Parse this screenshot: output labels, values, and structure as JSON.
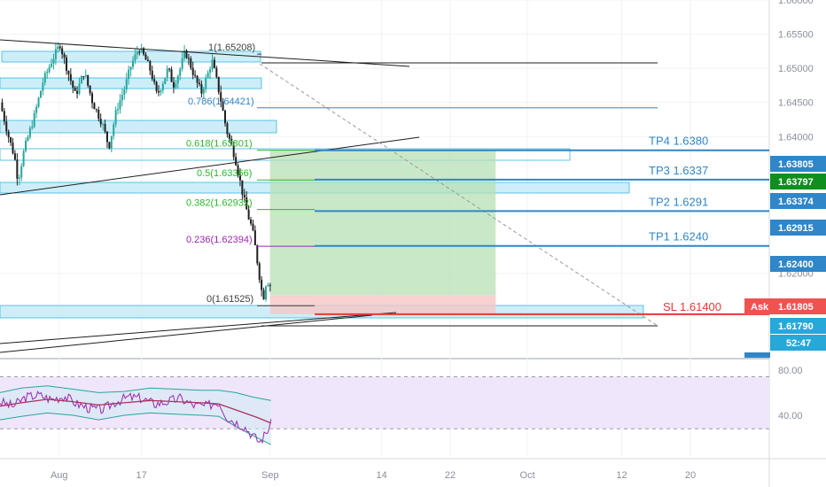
{
  "chart_data": {
    "type": "candlestick",
    "price_axis": {
      "ticks": [
        "1.66000",
        "1.65500",
        "1.65000",
        "1.64500",
        "1.64000",
        "1.62000"
      ],
      "range": [
        1.6075,
        1.66
      ]
    },
    "time_axis": {
      "ticks": [
        {
          "label": "Aug",
          "day": 7.4
        },
        {
          "label": "17",
          "day": 17
        },
        {
          "label": "Sep",
          "day": 32
        },
        {
          "label": "14",
          "day": 45
        },
        {
          "label": "22",
          "day": 53
        },
        {
          "label": "Oct",
          "day": 62
        },
        {
          "label": "12",
          "day": 73
        },
        {
          "label": "20",
          "day": 81
        }
      ],
      "range": [
        0.5,
        90.2
      ]
    },
    "price_path": [
      [
        0.5,
        1.645
      ],
      [
        1.5,
        1.64
      ],
      [
        2.2,
        1.637
      ],
      [
        2.6,
        1.6335
      ],
      [
        3.3,
        1.638
      ],
      [
        4.5,
        1.643
      ],
      [
        5.5,
        1.648
      ],
      [
        6.5,
        1.651
      ],
      [
        7.5,
        1.6535
      ],
      [
        8.3,
        1.65
      ],
      [
        9.3,
        1.646
      ],
      [
        10.3,
        1.6495
      ],
      [
        11.3,
        1.645
      ],
      [
        12.4,
        1.642
      ],
      [
        13.2,
        1.6385
      ],
      [
        14.1,
        1.644
      ],
      [
        15,
        1.647
      ],
      [
        15.8,
        1.6505
      ],
      [
        16.7,
        1.653
      ],
      [
        17.4,
        1.6515
      ],
      [
        18.1,
        1.6495
      ],
      [
        18.8,
        1.646
      ],
      [
        19.5,
        1.648
      ],
      [
        20.1,
        1.65
      ],
      [
        20.7,
        1.6475
      ],
      [
        21.4,
        1.6495
      ],
      [
        22.1,
        1.6525
      ],
      [
        22.7,
        1.6505
      ],
      [
        23.4,
        1.648
      ],
      [
        24,
        1.6465
      ],
      [
        24.7,
        1.649
      ],
      [
        25.2,
        1.6512
      ],
      [
        25.8,
        1.648
      ],
      [
        26.3,
        1.645
      ],
      [
        26.9,
        1.641
      ],
      [
        27.4,
        1.639
      ],
      [
        27.9,
        1.637
      ],
      [
        28.4,
        1.634
      ],
      [
        28.9,
        1.631
      ],
      [
        29.4,
        1.6285
      ],
      [
        29.9,
        1.6265
      ],
      [
        30.3,
        1.6235
      ],
      [
        30.7,
        1.62
      ],
      [
        31.0,
        1.6175
      ],
      [
        31.3,
        1.6165
      ],
      [
        31.6,
        1.6195
      ],
      [
        31.9,
        1.618
      ],
      [
        32.1,
        1.6185
      ]
    ],
    "fibonacci": [
      {
        "level": "1",
        "value": "1.65208",
        "label": "1(1.65208)",
        "price": 1.65208,
        "color": "#3f3f3f"
      },
      {
        "level": "0.786",
        "value": "1.64421",
        "label": "0.786(1.64421)",
        "price": 1.64421,
        "color": "#2f86c8"
      },
      {
        "level": "0.618",
        "value": "1.63801",
        "label": "0.618(1.63801)",
        "price": 1.63801,
        "color": "#2bb82b"
      },
      {
        "level": "0.5",
        "value": "1.63366",
        "label": "0.5(1.63366)",
        "price": 1.63366,
        "color": "#2bb82b"
      },
      {
        "level": "0.382",
        "value": "1.62932",
        "label": "0.382(1.62932)",
        "price": 1.62932,
        "color": "#2bb82b"
      },
      {
        "level": "0.236",
        "value": "1.62394",
        "label": "0.236(1.62394)",
        "price": 1.62394,
        "color": "#9c27b0"
      },
      {
        "level": "0",
        "value": "1.61525",
        "label": "0(1.61525)",
        "price": 1.61525,
        "color": "#3f3f3f"
      }
    ],
    "targets": [
      {
        "label": "TP4 1.6380",
        "price": 1.638,
        "color": "#2f86c8"
      },
      {
        "label": "TP3 1.6337",
        "price": 1.6337,
        "color": "#2f86c8"
      },
      {
        "label": "TP2 1.6291",
        "price": 1.6291,
        "color": "#2f86c8"
      },
      {
        "label": "TP1 1.6240",
        "price": 1.624,
        "color": "#2f86c8"
      },
      {
        "label": "SL 1.61400",
        "price": 1.614,
        "color": "#e53935"
      }
    ],
    "price_tags": [
      {
        "text": "1.63805",
        "price": 1.63805,
        "color": "#2f86c8"
      },
      {
        "text": "1.63797",
        "price": 1.63797,
        "color": "#0f8f1e"
      },
      {
        "text": "1.63374",
        "price": 1.63374,
        "color": "#2f86c8"
      },
      {
        "text": "1.62915",
        "price": 1.62915,
        "color": "#2f86c8"
      },
      {
        "text": "1.62400",
        "price": 1.624,
        "color": "#2f86c8"
      },
      {
        "text": "1.61805",
        "price": 1.61805,
        "color": "#ef5350",
        "prefix": "Ask"
      },
      {
        "text": "1.61790",
        "price": 1.6179,
        "color": "#26a8d8"
      }
    ],
    "countdown": "52:47",
    "position": {
      "entry": 1.6168,
      "target": 1.638,
      "stop": 1.614,
      "start_day": 32.0,
      "end_day": 58.3
    },
    "rsi": {
      "ticks": [
        "80.00",
        "40.00"
      ],
      "range": [
        4,
        90
      ],
      "upper": 74,
      "lower": 28,
      "rsi_path": [
        [
          0.5,
          52
        ],
        [
          2,
          48
        ],
        [
          3.5,
          56
        ],
        [
          5,
          58
        ],
        [
          6.5,
          54
        ],
        [
          8,
          57
        ],
        [
          9.5,
          50
        ],
        [
          11,
          46
        ],
        [
          12.5,
          45
        ],
        [
          14,
          52
        ],
        [
          15.5,
          56
        ],
        [
          17,
          55
        ],
        [
          18.5,
          50
        ],
        [
          20,
          52
        ],
        [
          21.5,
          55
        ],
        [
          23,
          49
        ],
        [
          24.5,
          48
        ],
        [
          26,
          52
        ],
        [
          27,
          38
        ],
        [
          28,
          34
        ],
        [
          29,
          30
        ],
        [
          30,
          22
        ],
        [
          30.8,
          16
        ],
        [
          31.3,
          22
        ],
        [
          31.8,
          28
        ],
        [
          32.1,
          32
        ]
      ],
      "ma_path": [
        [
          0.5,
          48
        ],
        [
          3,
          51
        ],
        [
          6,
          54
        ],
        [
          9,
          52
        ],
        [
          12,
          49
        ],
        [
          15,
          51
        ],
        [
          18,
          53
        ],
        [
          21,
          52
        ],
        [
          24,
          51
        ],
        [
          26,
          50
        ],
        [
          27.5,
          46
        ],
        [
          29,
          42
        ],
        [
          30.5,
          38
        ],
        [
          32.1,
          33
        ]
      ],
      "band_upper": [
        [
          0.5,
          60
        ],
        [
          3,
          64
        ],
        [
          6,
          66
        ],
        [
          9,
          63
        ],
        [
          12,
          60
        ],
        [
          15,
          61
        ],
        [
          18,
          64
        ],
        [
          21,
          63
        ],
        [
          24,
          62
        ],
        [
          26,
          62
        ],
        [
          28,
          60
        ],
        [
          30,
          56
        ],
        [
          32.1,
          53
        ]
      ],
      "band_lower": [
        [
          0.5,
          36
        ],
        [
          3,
          39
        ],
        [
          6,
          42
        ],
        [
          9,
          40
        ],
        [
          12,
          36
        ],
        [
          15,
          40
        ],
        [
          18,
          42
        ],
        [
          21,
          41
        ],
        [
          24,
          40
        ],
        [
          26,
          39
        ],
        [
          28,
          30
        ],
        [
          30,
          22
        ],
        [
          32.1,
          14
        ]
      ]
    }
  }
}
